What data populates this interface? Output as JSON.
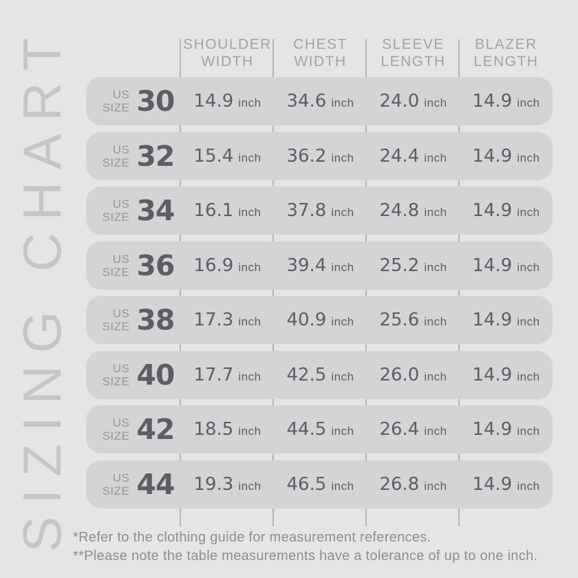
{
  "vertical_title": "SIZING CHART",
  "table": {
    "size_label": {
      "line1": "US",
      "line2": "SIZE"
    },
    "unit": "inch",
    "columns": [
      {
        "line1": "SHOULDER",
        "line2": "WIDTH"
      },
      {
        "line1": "CHEST",
        "line2": "WIDTH"
      },
      {
        "line1": "SLEEVE",
        "line2": "LENGTH"
      },
      {
        "line1": "BLAZER",
        "line2": "LENGTH"
      }
    ],
    "rows": [
      {
        "size": "30",
        "values": [
          "14.9",
          "34.6",
          "24.0",
          "14.9"
        ]
      },
      {
        "size": "32",
        "values": [
          "15.4",
          "36.2",
          "24.4",
          "14.9"
        ]
      },
      {
        "size": "34",
        "values": [
          "16.1",
          "37.8",
          "24.8",
          "14.9"
        ]
      },
      {
        "size": "36",
        "values": [
          "16.9",
          "39.4",
          "25.2",
          "14.9"
        ]
      },
      {
        "size": "38",
        "values": [
          "17.3",
          "40.9",
          "25.6",
          "14.9"
        ]
      },
      {
        "size": "40",
        "values": [
          "17.7",
          "42.5",
          "26.0",
          "14.9"
        ]
      },
      {
        "size": "42",
        "values": [
          "18.5",
          "44.5",
          "26.4",
          "14.9"
        ]
      },
      {
        "size": "44",
        "values": [
          "19.3",
          "46.5",
          "26.8",
          "14.9"
        ]
      }
    ]
  },
  "footnotes": [
    "*Refer to the clothing guide for measurement references.",
    "**Please note the table measurements have a tolerance of up to one inch."
  ],
  "chart_data": {
    "type": "table",
    "title": "SIZING CHART",
    "unit": "inch",
    "columns": [
      "US SIZE",
      "SHOULDER WIDTH",
      "CHEST WIDTH",
      "SLEEVE LENGTH",
      "BLAZER LENGTH"
    ],
    "rows": [
      [
        30,
        14.9,
        34.6,
        24.0,
        14.9
      ],
      [
        32,
        15.4,
        36.2,
        24.4,
        14.9
      ],
      [
        34,
        16.1,
        37.8,
        24.8,
        14.9
      ],
      [
        36,
        16.9,
        39.4,
        25.2,
        14.9
      ],
      [
        38,
        17.3,
        40.9,
        25.6,
        14.9
      ],
      [
        40,
        17.7,
        42.5,
        26.0,
        14.9
      ],
      [
        42,
        18.5,
        44.5,
        26.4,
        14.9
      ],
      [
        44,
        19.3,
        46.5,
        26.8,
        14.9
      ]
    ],
    "footnotes": [
      "*Refer to the clothing guide for measurement references.",
      "**Please note the table measurements have a tolerance of up to one inch."
    ]
  },
  "colors": {
    "background": "#e4e5e7",
    "row": "#d3d4d6",
    "divider": "#b3b4b6",
    "header_text": "#a2a3a5",
    "muted_label": "#969799",
    "value_text": "#5d5e62",
    "footnote": "#8d8e90",
    "vertical_title": "#c5c6c8"
  }
}
